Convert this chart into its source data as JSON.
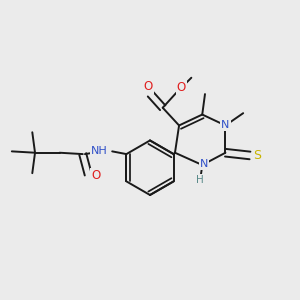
{
  "bg_color": "#ebebeb",
  "fig_width": 3.0,
  "fig_height": 3.0,
  "dpi": 100,
  "bond_color": "#1a1a1a",
  "bond_width": 1.4,
  "font_size": 8.0,
  "colors": {
    "C": "#1a1a1a",
    "N": "#3050c8",
    "O": "#e02020",
    "S": "#c8b400",
    "H": "#5a8a8a"
  }
}
